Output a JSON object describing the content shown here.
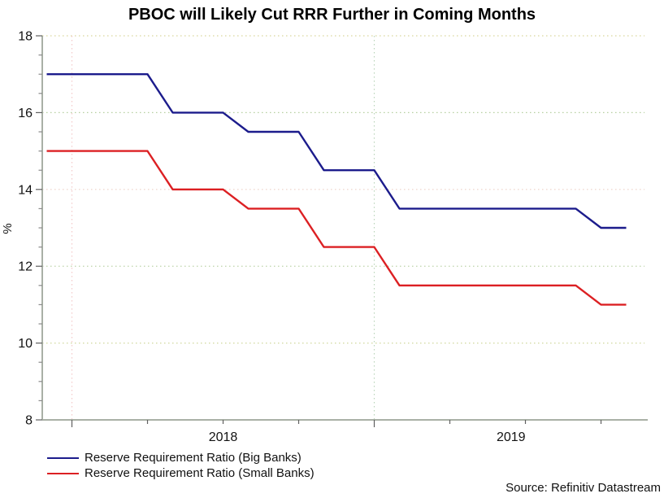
{
  "source": "Source: Refinitiv Datastream",
  "chart_data": {
    "type": "line",
    "title": "PBOC will Likely Cut RRR Further in Coming Months",
    "xlabel": "",
    "ylabel": "%",
    "ylim": [
      8,
      18
    ],
    "yticks": [
      8,
      10,
      12,
      14,
      16,
      18
    ],
    "y_minor_step": 0.5,
    "grid": "dotted horizontal gridlines at major y ticks, dotted vertical gridlines at year starts",
    "legend_position": "bottom-left",
    "x": [
      "Dec 2017",
      "Jan 2018",
      "Feb 2018",
      "Mar 2018",
      "Apr 2018",
      "May 2018",
      "Jun 2018",
      "Jul 2018",
      "Aug 2018",
      "Sep 2018",
      "Oct 2018",
      "Nov 2018",
      "Dec 2018",
      "Jan 2019",
      "Feb 2019",
      "Mar 2019",
      "Apr 2019",
      "May 2019",
      "Jun 2019",
      "Jul 2019",
      "Aug 2019",
      "Sep 2019",
      "Oct 2019",
      "Nov 2019"
    ],
    "x_year_labels": [
      "2018",
      "2019"
    ],
    "x_year_start_indices": [
      1,
      13
    ],
    "x_quarter_tick_indices": [
      1,
      4,
      7,
      10,
      13,
      16,
      19,
      22
    ],
    "series": [
      {
        "name": "Reserve Requirement Ratio (Big Banks)",
        "color": "#1c1c8c",
        "values": [
          17,
          17,
          17,
          17,
          17,
          16,
          16,
          16,
          15.5,
          15.5,
          15.5,
          14.5,
          14.5,
          14.5,
          13.5,
          13.5,
          13.5,
          13.5,
          13.5,
          13.5,
          13.5,
          13.5,
          13,
          13
        ]
      },
      {
        "name": "Reserve Requirement Ratio (Small Banks)",
        "color": "#dc2023",
        "values": [
          15,
          15,
          15,
          15,
          15,
          14,
          14,
          14,
          13.5,
          13.5,
          13.5,
          12.5,
          12.5,
          12.5,
          11.5,
          11.5,
          11.5,
          11.5,
          11.5,
          11.5,
          11.5,
          11.5,
          11,
          11
        ]
      }
    ]
  }
}
